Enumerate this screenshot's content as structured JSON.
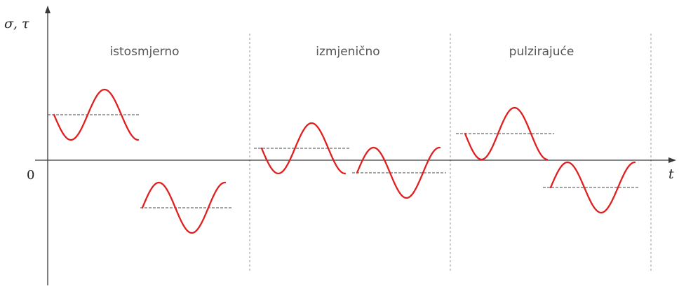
{
  "axes": {
    "y_label": "σ, τ",
    "x_label": "t",
    "origin_label": "0"
  },
  "regions": [
    {
      "label": "istosmjerno"
    },
    {
      "label": "izmjenično"
    },
    {
      "label": "pulzirajuće"
    }
  ],
  "colors": {
    "wave": "#e02020",
    "mean_line": "#444444",
    "axis": "#3a3a3a",
    "divider": "#9a9a9a"
  }
}
